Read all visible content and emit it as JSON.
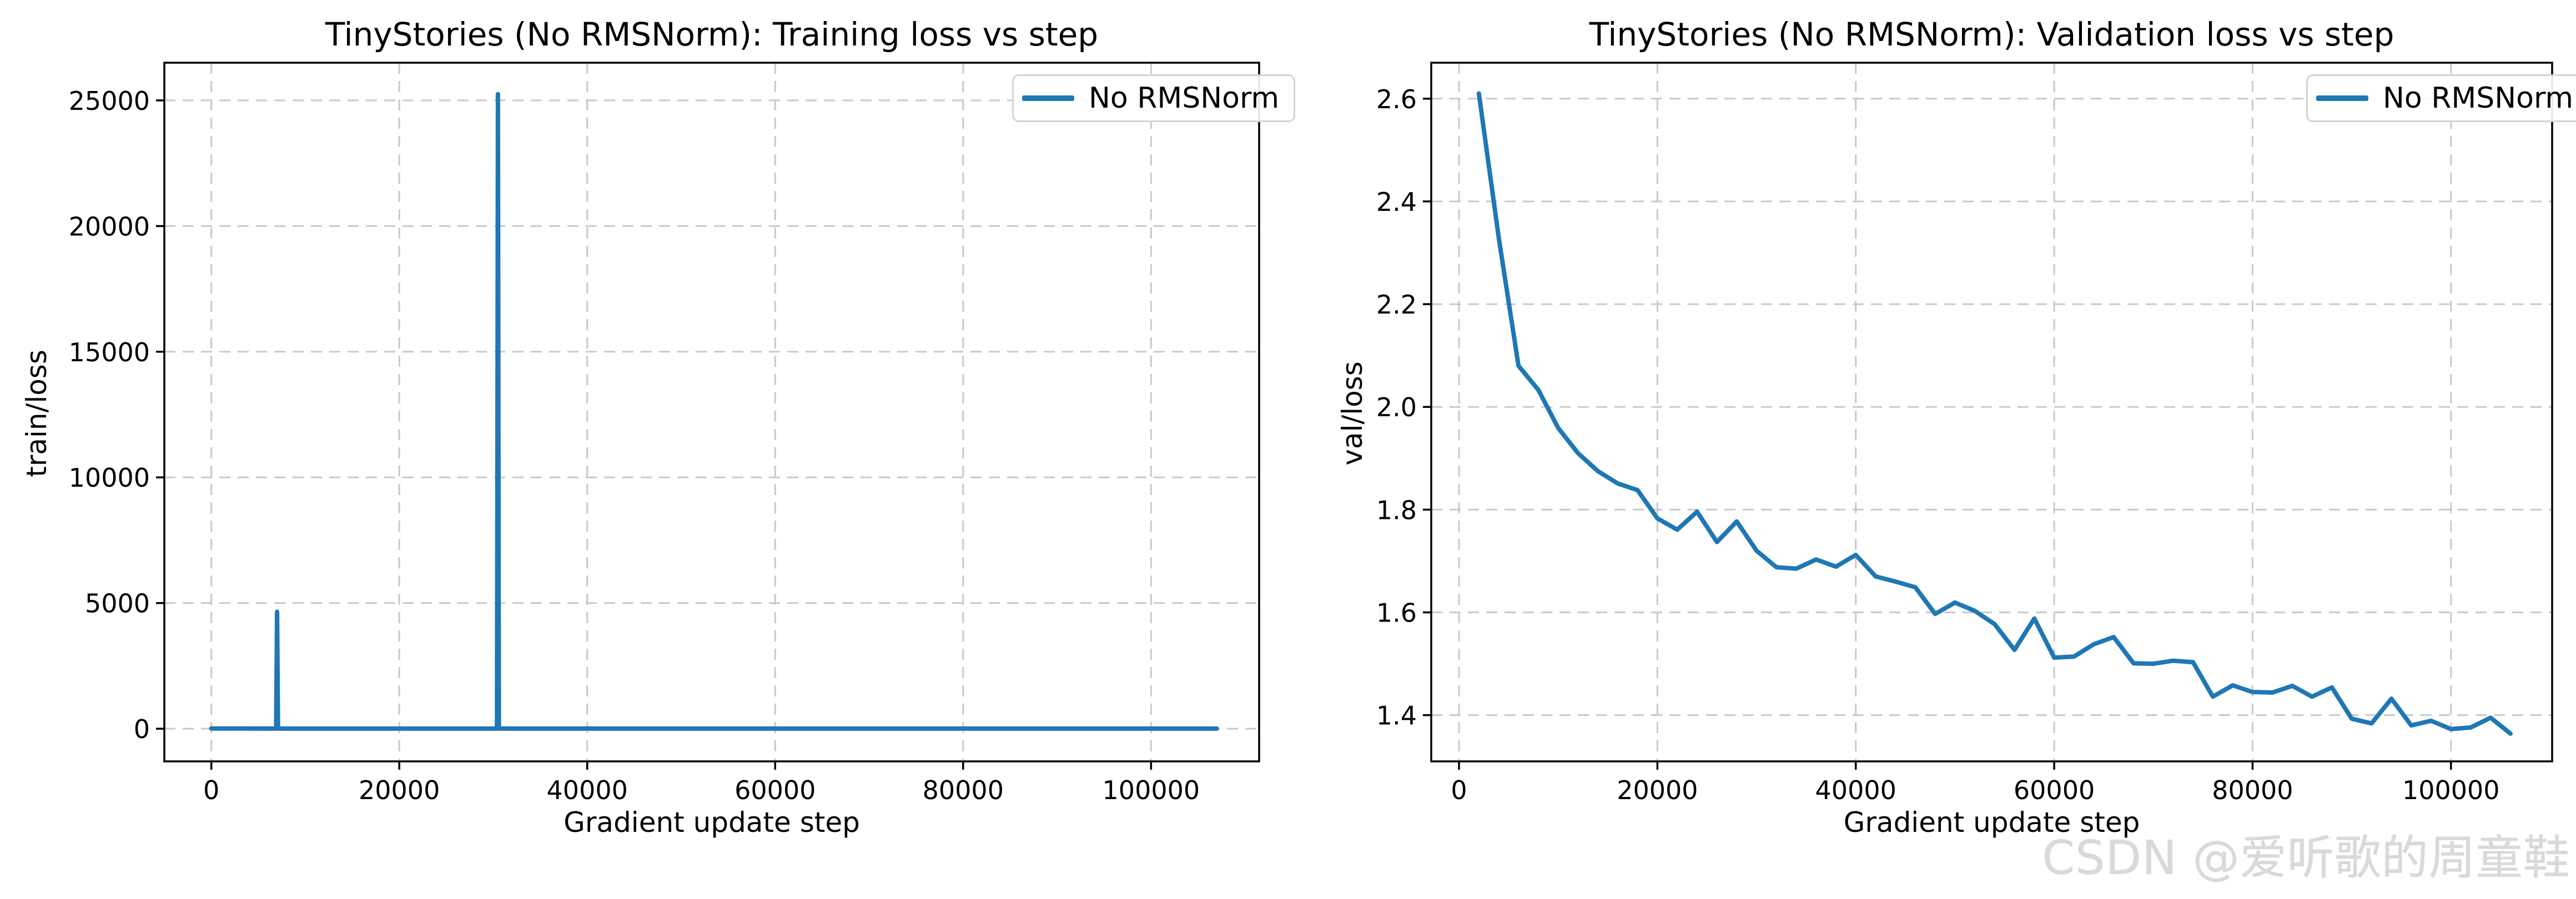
{
  "watermark": {
    "text": "CSDN @爱听歌的周童鞋",
    "color": "#d9d9d9"
  },
  "style": {
    "line_color": "#1f77b4",
    "grid_color": "#c9c9c9",
    "spine_color": "#000000",
    "background": "#ffffff"
  },
  "chart_data": [
    {
      "type": "line",
      "title": "TinyStories (No RMSNorm): Training loss vs step",
      "xlabel": "Gradient update step",
      "ylabel": "train/loss",
      "legend": [
        "No RMSNorm"
      ],
      "legend_position": "upper right",
      "grid": true,
      "line_color": "#1f77b4",
      "xlim": [
        -5000,
        111500
      ],
      "ylim": [
        -1300,
        26500
      ],
      "xticks": [
        0,
        20000,
        40000,
        60000,
        80000,
        100000
      ],
      "xtick_labels": [
        "0",
        "20000",
        "40000",
        "60000",
        "80000",
        "100000"
      ],
      "yticks": [
        0,
        5000,
        10000,
        15000,
        20000,
        25000
      ],
      "ytick_labels": [
        "0",
        "5000",
        "10000",
        "15000",
        "20000",
        "25000"
      ],
      "series": [
        {
          "name": "No RMSNorm",
          "points": [
            [
              0,
              10
            ],
            [
              6900,
              5
            ],
            [
              7000,
              4650
            ],
            [
              7100,
              5
            ],
            [
              30400,
              5
            ],
            [
              30500,
              25250
            ],
            [
              30600,
              5
            ],
            [
              107000,
              4
            ]
          ]
        }
      ]
    },
    {
      "type": "line",
      "title": "TinyStories (No RMSNorm): Validation loss vs step",
      "xlabel": "Gradient update step",
      "ylabel": "val/loss",
      "legend": [
        "No RMSNorm"
      ],
      "legend_position": "upper right",
      "grid": true,
      "line_color": "#1f77b4",
      "xlim": [
        -2800,
        110200
      ],
      "ylim": [
        1.31,
        2.67
      ],
      "xticks": [
        0,
        20000,
        40000,
        60000,
        80000,
        100000
      ],
      "xtick_labels": [
        "0",
        "20000",
        "40000",
        "60000",
        "80000",
        "100000"
      ],
      "yticks": [
        1.4,
        1.6,
        1.8,
        2.0,
        2.2,
        2.4,
        2.6
      ],
      "ytick_labels": [
        "1.4",
        "1.6",
        "1.8",
        "2.0",
        "2.2",
        "2.4",
        "2.6"
      ],
      "series": [
        {
          "name": "No RMSNorm",
          "points": [
            [
              2000,
              2.61
            ],
            [
              4000,
              2.33
            ],
            [
              6000,
              2.08
            ],
            [
              8000,
              2.033
            ],
            [
              10000,
              1.959
            ],
            [
              12000,
              1.91
            ],
            [
              14000,
              1.875
            ],
            [
              16000,
              1.851
            ],
            [
              18000,
              1.838
            ],
            [
              20000,
              1.783
            ],
            [
              22000,
              1.761
            ],
            [
              24000,
              1.796
            ],
            [
              26000,
              1.737
            ],
            [
              28000,
              1.777
            ],
            [
              30000,
              1.72
            ],
            [
              32000,
              1.688
            ],
            [
              34000,
              1.685
            ],
            [
              36000,
              1.703
            ],
            [
              38000,
              1.689
            ],
            [
              40000,
              1.712
            ],
            [
              42000,
              1.67
            ],
            [
              44000,
              1.66
            ],
            [
              46000,
              1.649
            ],
            [
              48000,
              1.597
            ],
            [
              50000,
              1.619
            ],
            [
              52000,
              1.603
            ],
            [
              54000,
              1.577
            ],
            [
              56000,
              1.527
            ],
            [
              58000,
              1.588
            ],
            [
              60000,
              1.512
            ],
            [
              62000,
              1.514
            ],
            [
              64000,
              1.538
            ],
            [
              66000,
              1.552
            ],
            [
              68000,
              1.501
            ],
            [
              70000,
              1.5
            ],
            [
              72000,
              1.506
            ],
            [
              74000,
              1.503
            ],
            [
              76000,
              1.436
            ],
            [
              78000,
              1.458
            ],
            [
              80000,
              1.445
            ],
            [
              82000,
              1.444
            ],
            [
              84000,
              1.457
            ],
            [
              86000,
              1.436
            ],
            [
              88000,
              1.454
            ],
            [
              90000,
              1.393
            ],
            [
              92000,
              1.384
            ],
            [
              94000,
              1.432
            ],
            [
              96000,
              1.38
            ],
            [
              98000,
              1.389
            ],
            [
              100000,
              1.373
            ],
            [
              102000,
              1.376
            ],
            [
              104000,
              1.395
            ],
            [
              106000,
              1.364
            ]
          ]
        }
      ]
    }
  ]
}
